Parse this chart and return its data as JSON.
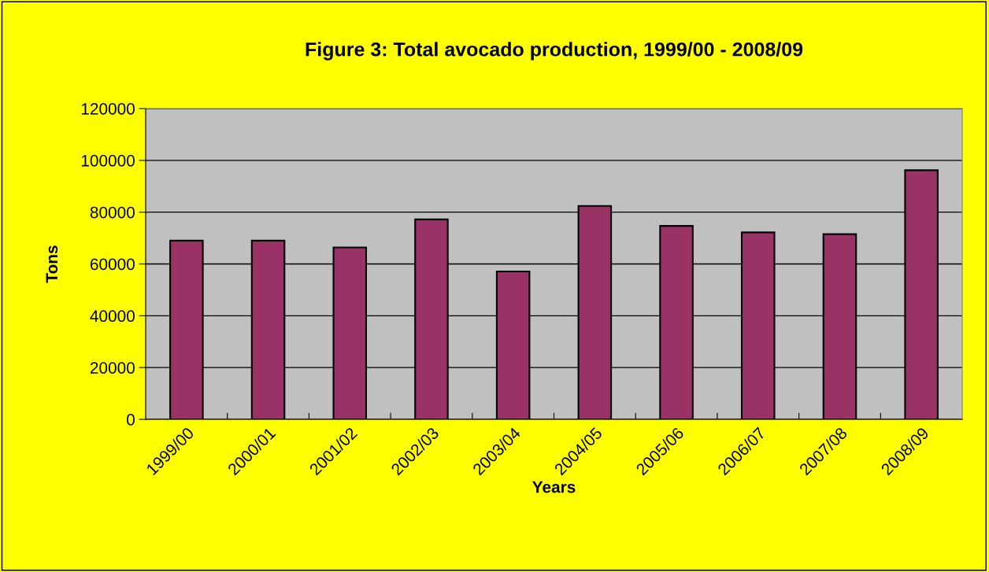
{
  "chart_data": {
    "type": "bar",
    "title": "Figure 3: Total avocado production, 1999/00 - 2008/09",
    "xlabel": "Years",
    "ylabel": "Tons",
    "categories": [
      "1999/00",
      "2000/01",
      "2001/02",
      "2002/03",
      "2003/04",
      "2004/05",
      "2005/06",
      "2006/07",
      "2007/08",
      "2008/09"
    ],
    "values": [
      69000,
      69000,
      66400,
      77200,
      57100,
      82400,
      74700,
      72200,
      71500,
      96200
    ],
    "color": "#993366",
    "ylim": [
      0,
      120000
    ],
    "yticks": [
      0,
      20000,
      40000,
      60000,
      80000,
      100000,
      120000
    ],
    "grid": "y",
    "legend": false
  }
}
